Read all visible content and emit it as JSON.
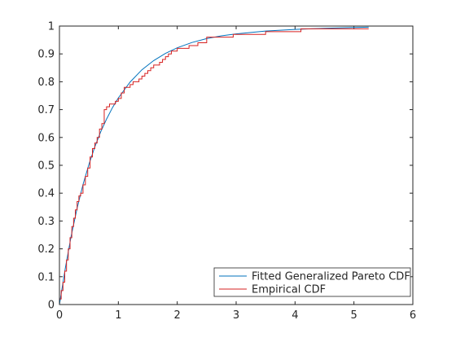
{
  "chart_data": {
    "type": "line",
    "title": "",
    "xlabel": "",
    "ylabel": "",
    "xlim": [
      0,
      6
    ],
    "ylim": [
      0,
      1
    ],
    "xticks": [
      0,
      1,
      2,
      3,
      4,
      5,
      6
    ],
    "yticks": [
      0,
      0.1,
      0.2,
      0.3,
      0.4,
      0.5,
      0.6,
      0.7,
      0.8,
      0.9,
      1
    ],
    "grid": false,
    "legend_position": "bottom-right",
    "series": [
      {
        "name": "Fitted Generalized Pareto CDF",
        "color": "#0072bd",
        "style": "smooth",
        "x": [
          0,
          0.1,
          0.2,
          0.3,
          0.4,
          0.5,
          0.6,
          0.7,
          0.8,
          0.9,
          1.0,
          1.2,
          1.4,
          1.6,
          1.8,
          2.0,
          2.25,
          2.5,
          2.75,
          3.0,
          3.5,
          4.0,
          4.5,
          5.0,
          5.25
        ],
        "y": [
          0,
          0.131,
          0.247,
          0.346,
          0.431,
          0.503,
          0.566,
          0.62,
          0.666,
          0.707,
          0.742,
          0.799,
          0.843,
          0.876,
          0.902,
          0.922,
          0.941,
          0.955,
          0.965,
          0.972,
          0.982,
          0.988,
          0.992,
          0.995,
          0.996
        ]
      },
      {
        "name": "Empirical CDF",
        "color": "#d62020",
        "style": "stairs",
        "x": [
          0,
          0.03,
          0.06,
          0.09,
          0.12,
          0.15,
          0.18,
          0.21,
          0.24,
          0.27,
          0.3,
          0.33,
          0.36,
          0.4,
          0.44,
          0.48,
          0.52,
          0.56,
          0.6,
          0.64,
          0.68,
          0.72,
          0.76,
          0.8,
          0.85,
          0.9,
          0.95,
          1.0,
          1.05,
          1.1,
          1.15,
          1.2,
          1.25,
          1.3,
          1.35,
          1.4,
          1.45,
          1.5,
          1.55,
          1.6,
          1.65,
          1.7,
          1.75,
          1.8,
          1.85,
          1.9,
          2.0,
          2.1,
          2.2,
          2.35,
          2.5,
          2.65,
          2.8,
          2.95,
          3.2,
          3.5,
          3.8,
          4.1,
          4.4,
          4.7,
          5.0,
          5.25
        ],
        "y": [
          0.02,
          0.05,
          0.08,
          0.12,
          0.16,
          0.2,
          0.24,
          0.28,
          0.31,
          0.34,
          0.37,
          0.39,
          0.4,
          0.43,
          0.46,
          0.49,
          0.53,
          0.56,
          0.58,
          0.6,
          0.63,
          0.65,
          0.7,
          0.71,
          0.72,
          0.72,
          0.73,
          0.74,
          0.76,
          0.78,
          0.78,
          0.79,
          0.8,
          0.8,
          0.81,
          0.82,
          0.83,
          0.84,
          0.85,
          0.86,
          0.86,
          0.87,
          0.88,
          0.89,
          0.9,
          0.91,
          0.92,
          0.92,
          0.93,
          0.94,
          0.96,
          0.96,
          0.96,
          0.97,
          0.97,
          0.98,
          0.98,
          0.99,
          0.99,
          0.99,
          0.99,
          0.99
        ]
      }
    ]
  }
}
